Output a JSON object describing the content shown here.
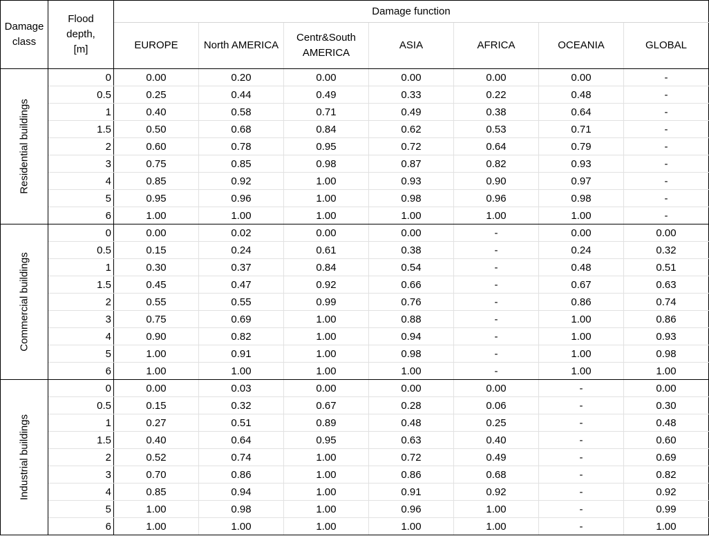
{
  "header": {
    "damage_class": [
      "Damage",
      "class"
    ],
    "flood_depth": [
      "Flood",
      "depth,",
      "[m]"
    ],
    "damage_function": "Damage function",
    "regions": [
      [
        "EUROPE"
      ],
      [
        "North AMERICA"
      ],
      [
        "Centr&South",
        "AMERICA"
      ],
      [
        "ASIA"
      ],
      [
        "AFRICA"
      ],
      [
        "OCEANIA"
      ],
      [
        "GLOBAL"
      ]
    ]
  },
  "groups": [
    {
      "label": "Residential buildings",
      "rows": [
        [
          "0",
          [
            "0.00",
            "0.20",
            "0.00",
            "0.00",
            "0.00",
            "0.00",
            "-"
          ]
        ],
        [
          "0.5",
          [
            "0.25",
            "0.44",
            "0.49",
            "0.33",
            "0.22",
            "0.48",
            "-"
          ]
        ],
        [
          "1",
          [
            "0.40",
            "0.58",
            "0.71",
            "0.49",
            "0.38",
            "0.64",
            "-"
          ]
        ],
        [
          "1.5",
          [
            "0.50",
            "0.68",
            "0.84",
            "0.62",
            "0.53",
            "0.71",
            "-"
          ]
        ],
        [
          "2",
          [
            "0.60",
            "0.78",
            "0.95",
            "0.72",
            "0.64",
            "0.79",
            "-"
          ]
        ],
        [
          "3",
          [
            "0.75",
            "0.85",
            "0.98",
            "0.87",
            "0.82",
            "0.93",
            "-"
          ]
        ],
        [
          "4",
          [
            "0.85",
            "0.92",
            "1.00",
            "0.93",
            "0.90",
            "0.97",
            "-"
          ]
        ],
        [
          "5",
          [
            "0.95",
            "0.96",
            "1.00",
            "0.98",
            "0.96",
            "0.98",
            "-"
          ]
        ],
        [
          "6",
          [
            "1.00",
            "1.00",
            "1.00",
            "1.00",
            "1.00",
            "1.00",
            "-"
          ]
        ]
      ]
    },
    {
      "label": "Commercial buildings",
      "rows": [
        [
          "0",
          [
            "0.00",
            "0.02",
            "0.00",
            "0.00",
            "-",
            "0.00",
            "0.00"
          ]
        ],
        [
          "0.5",
          [
            "0.15",
            "0.24",
            "0.61",
            "0.38",
            "-",
            "0.24",
            "0.32"
          ]
        ],
        [
          "1",
          [
            "0.30",
            "0.37",
            "0.84",
            "0.54",
            "-",
            "0.48",
            "0.51"
          ]
        ],
        [
          "1.5",
          [
            "0.45",
            "0.47",
            "0.92",
            "0.66",
            "-",
            "0.67",
            "0.63"
          ]
        ],
        [
          "2",
          [
            "0.55",
            "0.55",
            "0.99",
            "0.76",
            "-",
            "0.86",
            "0.74"
          ]
        ],
        [
          "3",
          [
            "0.75",
            "0.69",
            "1.00",
            "0.88",
            "-",
            "1.00",
            "0.86"
          ]
        ],
        [
          "4",
          [
            "0.90",
            "0.82",
            "1.00",
            "0.94",
            "-",
            "1.00",
            "0.93"
          ]
        ],
        [
          "5",
          [
            "1.00",
            "0.91",
            "1.00",
            "0.98",
            "-",
            "1.00",
            "0.98"
          ]
        ],
        [
          "6",
          [
            "1.00",
            "1.00",
            "1.00",
            "1.00",
            "-",
            "1.00",
            "1.00"
          ]
        ]
      ]
    },
    {
      "label": "Industrial buildings",
      "rows": [
        [
          "0",
          [
            "0.00",
            "0.03",
            "0.00",
            "0.00",
            "0.00",
            "-",
            "0.00"
          ]
        ],
        [
          "0.5",
          [
            "0.15",
            "0.32",
            "0.67",
            "0.28",
            "0.06",
            "-",
            "0.30"
          ]
        ],
        [
          "1",
          [
            "0.27",
            "0.51",
            "0.89",
            "0.48",
            "0.25",
            "-",
            "0.48"
          ]
        ],
        [
          "1.5",
          [
            "0.40",
            "0.64",
            "0.95",
            "0.63",
            "0.40",
            "-",
            "0.60"
          ]
        ],
        [
          "2",
          [
            "0.52",
            "0.74",
            "1.00",
            "0.72",
            "0.49",
            "-",
            "0.69"
          ]
        ],
        [
          "3",
          [
            "0.70",
            "0.86",
            "1.00",
            "0.86",
            "0.68",
            "-",
            "0.82"
          ]
        ],
        [
          "4",
          [
            "0.85",
            "0.94",
            "1.00",
            "0.91",
            "0.92",
            "-",
            "0.92"
          ]
        ],
        [
          "5",
          [
            "1.00",
            "0.98",
            "1.00",
            "0.96",
            "1.00",
            "-",
            "0.99"
          ]
        ],
        [
          "6",
          [
            "1.00",
            "1.00",
            "1.00",
            "1.00",
            "1.00",
            "-",
            "1.00"
          ]
        ]
      ]
    }
  ]
}
